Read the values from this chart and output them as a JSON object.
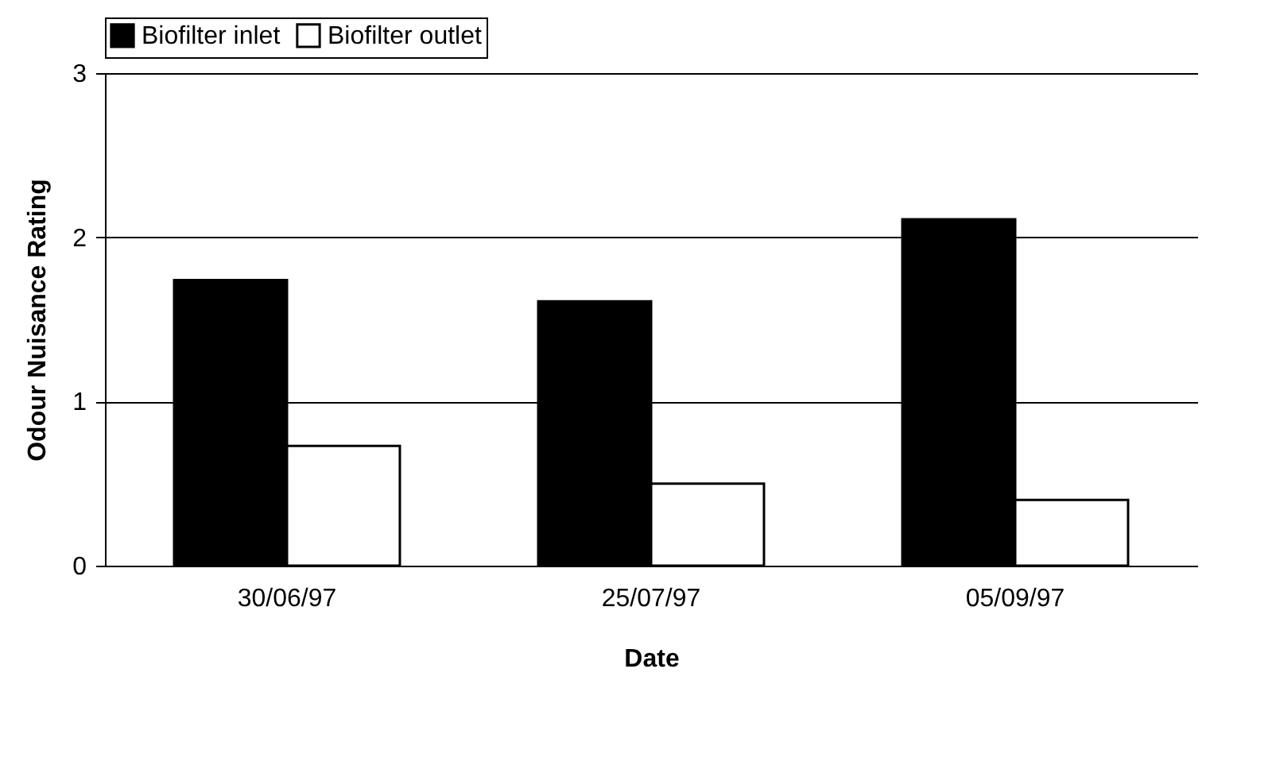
{
  "chart_data": {
    "type": "bar",
    "xlabel": "Date",
    "ylabel": "Odour Nuisance Rating",
    "categories": [
      "30/06/97",
      "25/07/97",
      "05/09/97"
    ],
    "series": [
      {
        "name": "Biofilter inlet",
        "color": "#000000",
        "values": [
          1.74,
          1.61,
          2.11
        ]
      },
      {
        "name": "Biofilter outlet",
        "color": "#ffffff",
        "values": [
          0.73,
          0.5,
          0.4
        ]
      }
    ],
    "ylim": [
      0,
      3
    ],
    "yticks": [
      0,
      1,
      2,
      3
    ],
    "grid": "y",
    "legend": "top"
  }
}
